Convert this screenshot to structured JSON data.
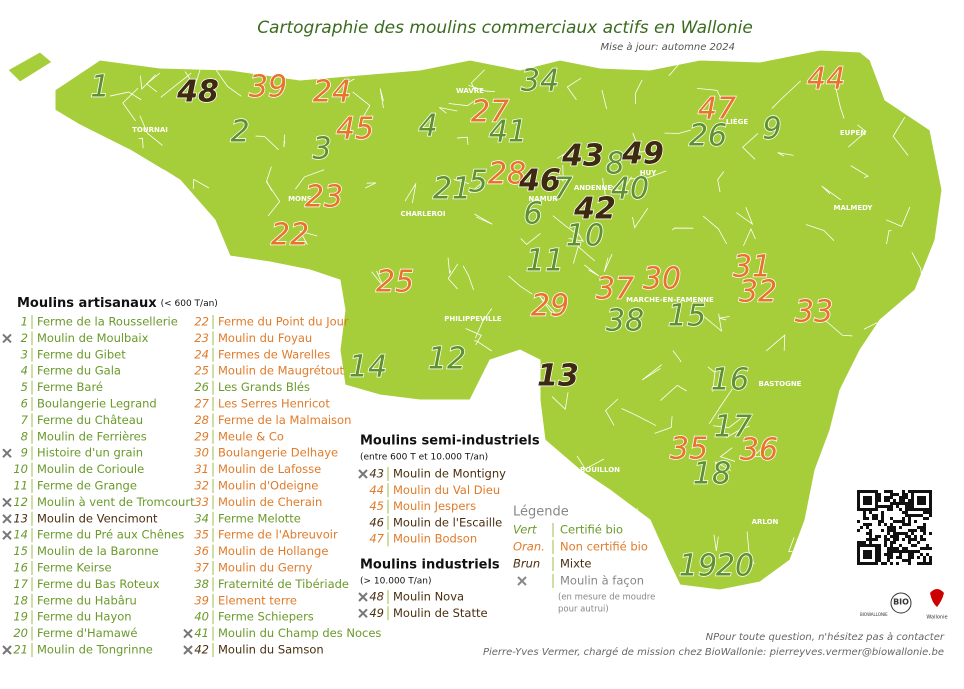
{
  "header": {
    "title": "Cartographie des moulins commerciaux actifs en Wallonie",
    "subtitle": "Mise à jour: automne 2024"
  },
  "cities": [
    "TOURNAI",
    "WAVRE",
    "LIÈGE",
    "EUPEN",
    "MONS",
    "CHARLEROI",
    "NAMUR",
    "ANDENNE",
    "HUY",
    "MALMEDY",
    "MARCHE-EN-FAMENNE",
    "PHILIPPEVILLE",
    "BASTOGNE",
    "BOUILLON",
    "ARLON"
  ],
  "markers": [
    {
      "label": "1",
      "kind": "vert"
    },
    {
      "label": "48",
      "kind": "brun"
    },
    {
      "label": "39",
      "kind": "orange"
    },
    {
      "label": "24",
      "kind": "orange"
    },
    {
      "label": "2",
      "kind": "vert"
    },
    {
      "label": "45",
      "kind": "orange"
    },
    {
      "label": "3",
      "kind": "vert"
    },
    {
      "label": "4",
      "kind": "vert"
    },
    {
      "label": "27",
      "kind": "orange"
    },
    {
      "label": "41",
      "kind": "vert"
    },
    {
      "label": "34",
      "kind": "vert"
    },
    {
      "label": "44",
      "kind": "orange"
    },
    {
      "label": "47",
      "kind": "orange"
    },
    {
      "label": "26",
      "kind": "vert"
    },
    {
      "label": "9",
      "kind": "vert"
    },
    {
      "label": "43",
      "kind": "brun"
    },
    {
      "label": "8",
      "kind": "vert"
    },
    {
      "label": "49",
      "kind": "brun"
    },
    {
      "label": "21",
      "kind": "vert"
    },
    {
      "label": "5",
      "kind": "vert"
    },
    {
      "label": "28",
      "kind": "orange"
    },
    {
      "label": "46",
      "kind": "brun"
    },
    {
      "label": "7",
      "kind": "vert"
    },
    {
      "label": "40",
      "kind": "vert"
    },
    {
      "label": "23",
      "kind": "orange"
    },
    {
      "label": "42",
      "kind": "brun"
    },
    {
      "label": "6",
      "kind": "vert"
    },
    {
      "label": "10",
      "kind": "vert"
    },
    {
      "label": "22",
      "kind": "orange"
    },
    {
      "label": "11",
      "kind": "vert"
    },
    {
      "label": "25",
      "kind": "orange"
    },
    {
      "label": "30",
      "kind": "orange"
    },
    {
      "label": "31",
      "kind": "orange"
    },
    {
      "label": "37",
      "kind": "orange"
    },
    {
      "label": "32",
      "kind": "orange"
    },
    {
      "label": "29",
      "kind": "orange"
    },
    {
      "label": "38",
      "kind": "vert"
    },
    {
      "label": "15",
      "kind": "vert"
    },
    {
      "label": "33",
      "kind": "orange"
    },
    {
      "label": "12",
      "kind": "vert"
    },
    {
      "label": "14",
      "kind": "vert"
    },
    {
      "label": "13",
      "kind": "brun"
    },
    {
      "label": "16",
      "kind": "vert"
    },
    {
      "label": "17",
      "kind": "vert"
    },
    {
      "label": "35",
      "kind": "orange"
    },
    {
      "label": "36",
      "kind": "orange"
    },
    {
      "label": "18",
      "kind": "vert"
    },
    {
      "label": "19",
      "kind": "vert"
    },
    {
      "label": "20",
      "kind": "vert"
    }
  ],
  "lists": [
    {
      "title": "Moulins artisanaux",
      "note": "(< 600 T/an)",
      "items": [
        {
          "number": "1",
          "name": "Ferme de la Roussellerie",
          "kind": "vert",
          "facon": false
        },
        {
          "number": "2",
          "name": "Moulin de Moulbaix",
          "kind": "vert",
          "facon": true
        },
        {
          "number": "3",
          "name": "Ferme du Gibet",
          "kind": "vert",
          "facon": false
        },
        {
          "number": "4",
          "name": "Ferme du Gala",
          "kind": "vert",
          "facon": false
        },
        {
          "number": "5",
          "name": "Ferme Baré",
          "kind": "vert",
          "facon": false
        },
        {
          "number": "6",
          "name": "Boulangerie Legrand",
          "kind": "vert",
          "facon": false
        },
        {
          "number": "7",
          "name": "Ferme du Château",
          "kind": "vert",
          "facon": false
        },
        {
          "number": "8",
          "name": "Moulin de Ferrières",
          "kind": "vert",
          "facon": false
        },
        {
          "number": "9",
          "name": "Histoire d'un grain",
          "kind": "vert",
          "facon": true
        },
        {
          "number": "10",
          "name": "Moulin de Corioule",
          "kind": "vert",
          "facon": false
        },
        {
          "number": "11",
          "name": "Ferme de Grange",
          "kind": "vert",
          "facon": false
        },
        {
          "number": "12",
          "name": "Moulin à vent de Tromcourt",
          "kind": "vert",
          "facon": true
        },
        {
          "number": "13",
          "name": "Moulin de Vencimont",
          "kind": "brun",
          "facon": true
        },
        {
          "number": "14",
          "name": "Ferme du Pré aux Chênes",
          "kind": "vert",
          "facon": true
        },
        {
          "number": "15",
          "name": "Moulin de la Baronne",
          "kind": "vert",
          "facon": false
        },
        {
          "number": "16",
          "name": "Ferme Keirse",
          "kind": "vert",
          "facon": false
        },
        {
          "number": "17",
          "name": "Ferme du Bas Roteux",
          "kind": "vert",
          "facon": false
        },
        {
          "number": "18",
          "name": "Ferme du Habâru",
          "kind": "vert",
          "facon": false
        },
        {
          "number": "19",
          "name": "Ferme du Hayon",
          "kind": "vert",
          "facon": false
        },
        {
          "number": "20",
          "name": "Ferme d'Hamawé",
          "kind": "vert",
          "facon": false
        },
        {
          "number": "21",
          "name": "Moulin de Tongrinne",
          "kind": "vert",
          "facon": true
        },
        {
          "number": "22",
          "name": "Ferme du Point du Jour",
          "kind": "orange",
          "facon": false
        },
        {
          "number": "23",
          "name": "Moulin du Foyau",
          "kind": "orange",
          "facon": false
        },
        {
          "number": "24",
          "name": "Fermes de Warelles",
          "kind": "orange",
          "facon": false
        },
        {
          "number": "25",
          "name": "Moulin de Maugrétout",
          "kind": "orange",
          "facon": false
        },
        {
          "number": "26",
          "name": "Les Grands Blés",
          "kind": "vert",
          "facon": false
        },
        {
          "number": "27",
          "name": "Les Serres Henricot",
          "kind": "orange",
          "facon": false
        },
        {
          "number": "28",
          "name": "Ferme de la Malmaison",
          "kind": "orange",
          "facon": false
        },
        {
          "number": "29",
          "name": "Meule & Co",
          "kind": "orange",
          "facon": false
        },
        {
          "number": "30",
          "name": "Boulangerie Delhaye",
          "kind": "orange",
          "facon": false
        },
        {
          "number": "31",
          "name": "Moulin de Lafosse",
          "kind": "orange",
          "facon": false
        },
        {
          "number": "32",
          "name": "Moulin d'Odeigne",
          "kind": "orange",
          "facon": false
        },
        {
          "number": "33",
          "name": "Moulin de Cherain",
          "kind": "orange",
          "facon": false
        },
        {
          "number": "34",
          "name": "Ferme Melotte",
          "kind": "vert",
          "facon": false
        },
        {
          "number": "35",
          "name": "Ferme de l'Abreuvoir",
          "kind": "orange",
          "facon": false
        },
        {
          "number": "36",
          "name": "Moulin de Hollange",
          "kind": "orange",
          "facon": false
        },
        {
          "number": "37",
          "name": "Moulin du Gerny",
          "kind": "orange",
          "facon": false
        },
        {
          "number": "38",
          "name": "Fraternité de Tibériade",
          "kind": "vert",
          "facon": false
        },
        {
          "number": "39",
          "name": "Element terre",
          "kind": "orange",
          "facon": false
        },
        {
          "number": "40",
          "name": "Ferme Schiepers",
          "kind": "vert",
          "facon": false
        },
        {
          "number": "41",
          "name": "Moulin du Champ des Noces",
          "kind": "vert",
          "facon": true
        },
        {
          "number": "42",
          "name": "Moulin du Samson",
          "kind": "brun",
          "facon": true
        }
      ]
    },
    {
      "title": "Moulins semi-industriels",
      "note": "(entre 600 T et 10.000 T/an)",
      "items": [
        {
          "number": "43",
          "name": "Moulin de Montigny",
          "kind": "brun",
          "facon": true
        },
        {
          "number": "44",
          "name": "Moulin du Val Dieu",
          "kind": "orange",
          "facon": false
        },
        {
          "number": "45",
          "name": "Moulin Jespers",
          "kind": "orange",
          "facon": false
        },
        {
          "number": "46",
          "name": "Moulin de l'Escaille",
          "kind": "brun",
          "facon": false
        },
        {
          "number": "47",
          "name": "Moulin Bodson",
          "kind": "orange",
          "facon": false
        }
      ]
    },
    {
      "title": "Moulins industriels",
      "note": "(> 10.000 T/an)",
      "items": [
        {
          "number": "48",
          "name": "Moulin Nova",
          "kind": "brun",
          "facon": true
        },
        {
          "number": "49",
          "name": "Moulin de Statte",
          "kind": "brun",
          "facon": true
        }
      ]
    }
  ],
  "legend": {
    "title": "Légende",
    "items": [
      {
        "term": "Vert",
        "text": "Certifié bio",
        "kind": "vert"
      },
      {
        "term": "Oran.",
        "text": "Non certifié bio",
        "kind": "orange"
      },
      {
        "term": "Brun",
        "text": "Mixte",
        "kind": "brun"
      }
    ],
    "facon": {
      "text": "Moulin à façon",
      "note": [
        "(en mesure de moudre",
        "pour autrui)"
      ]
    }
  },
  "logos": {
    "bio": "BIO",
    "wallonie": "Wallonie",
    "biowallonie": "BIOWALLONIE"
  },
  "footer": [
    "NPour toute question, n'hésitez pas à contacter",
    "Pierre-Yves Vermer, chargé de mission chez BioWallonie: pierreyves.vermer@biowallonie.be"
  ]
}
